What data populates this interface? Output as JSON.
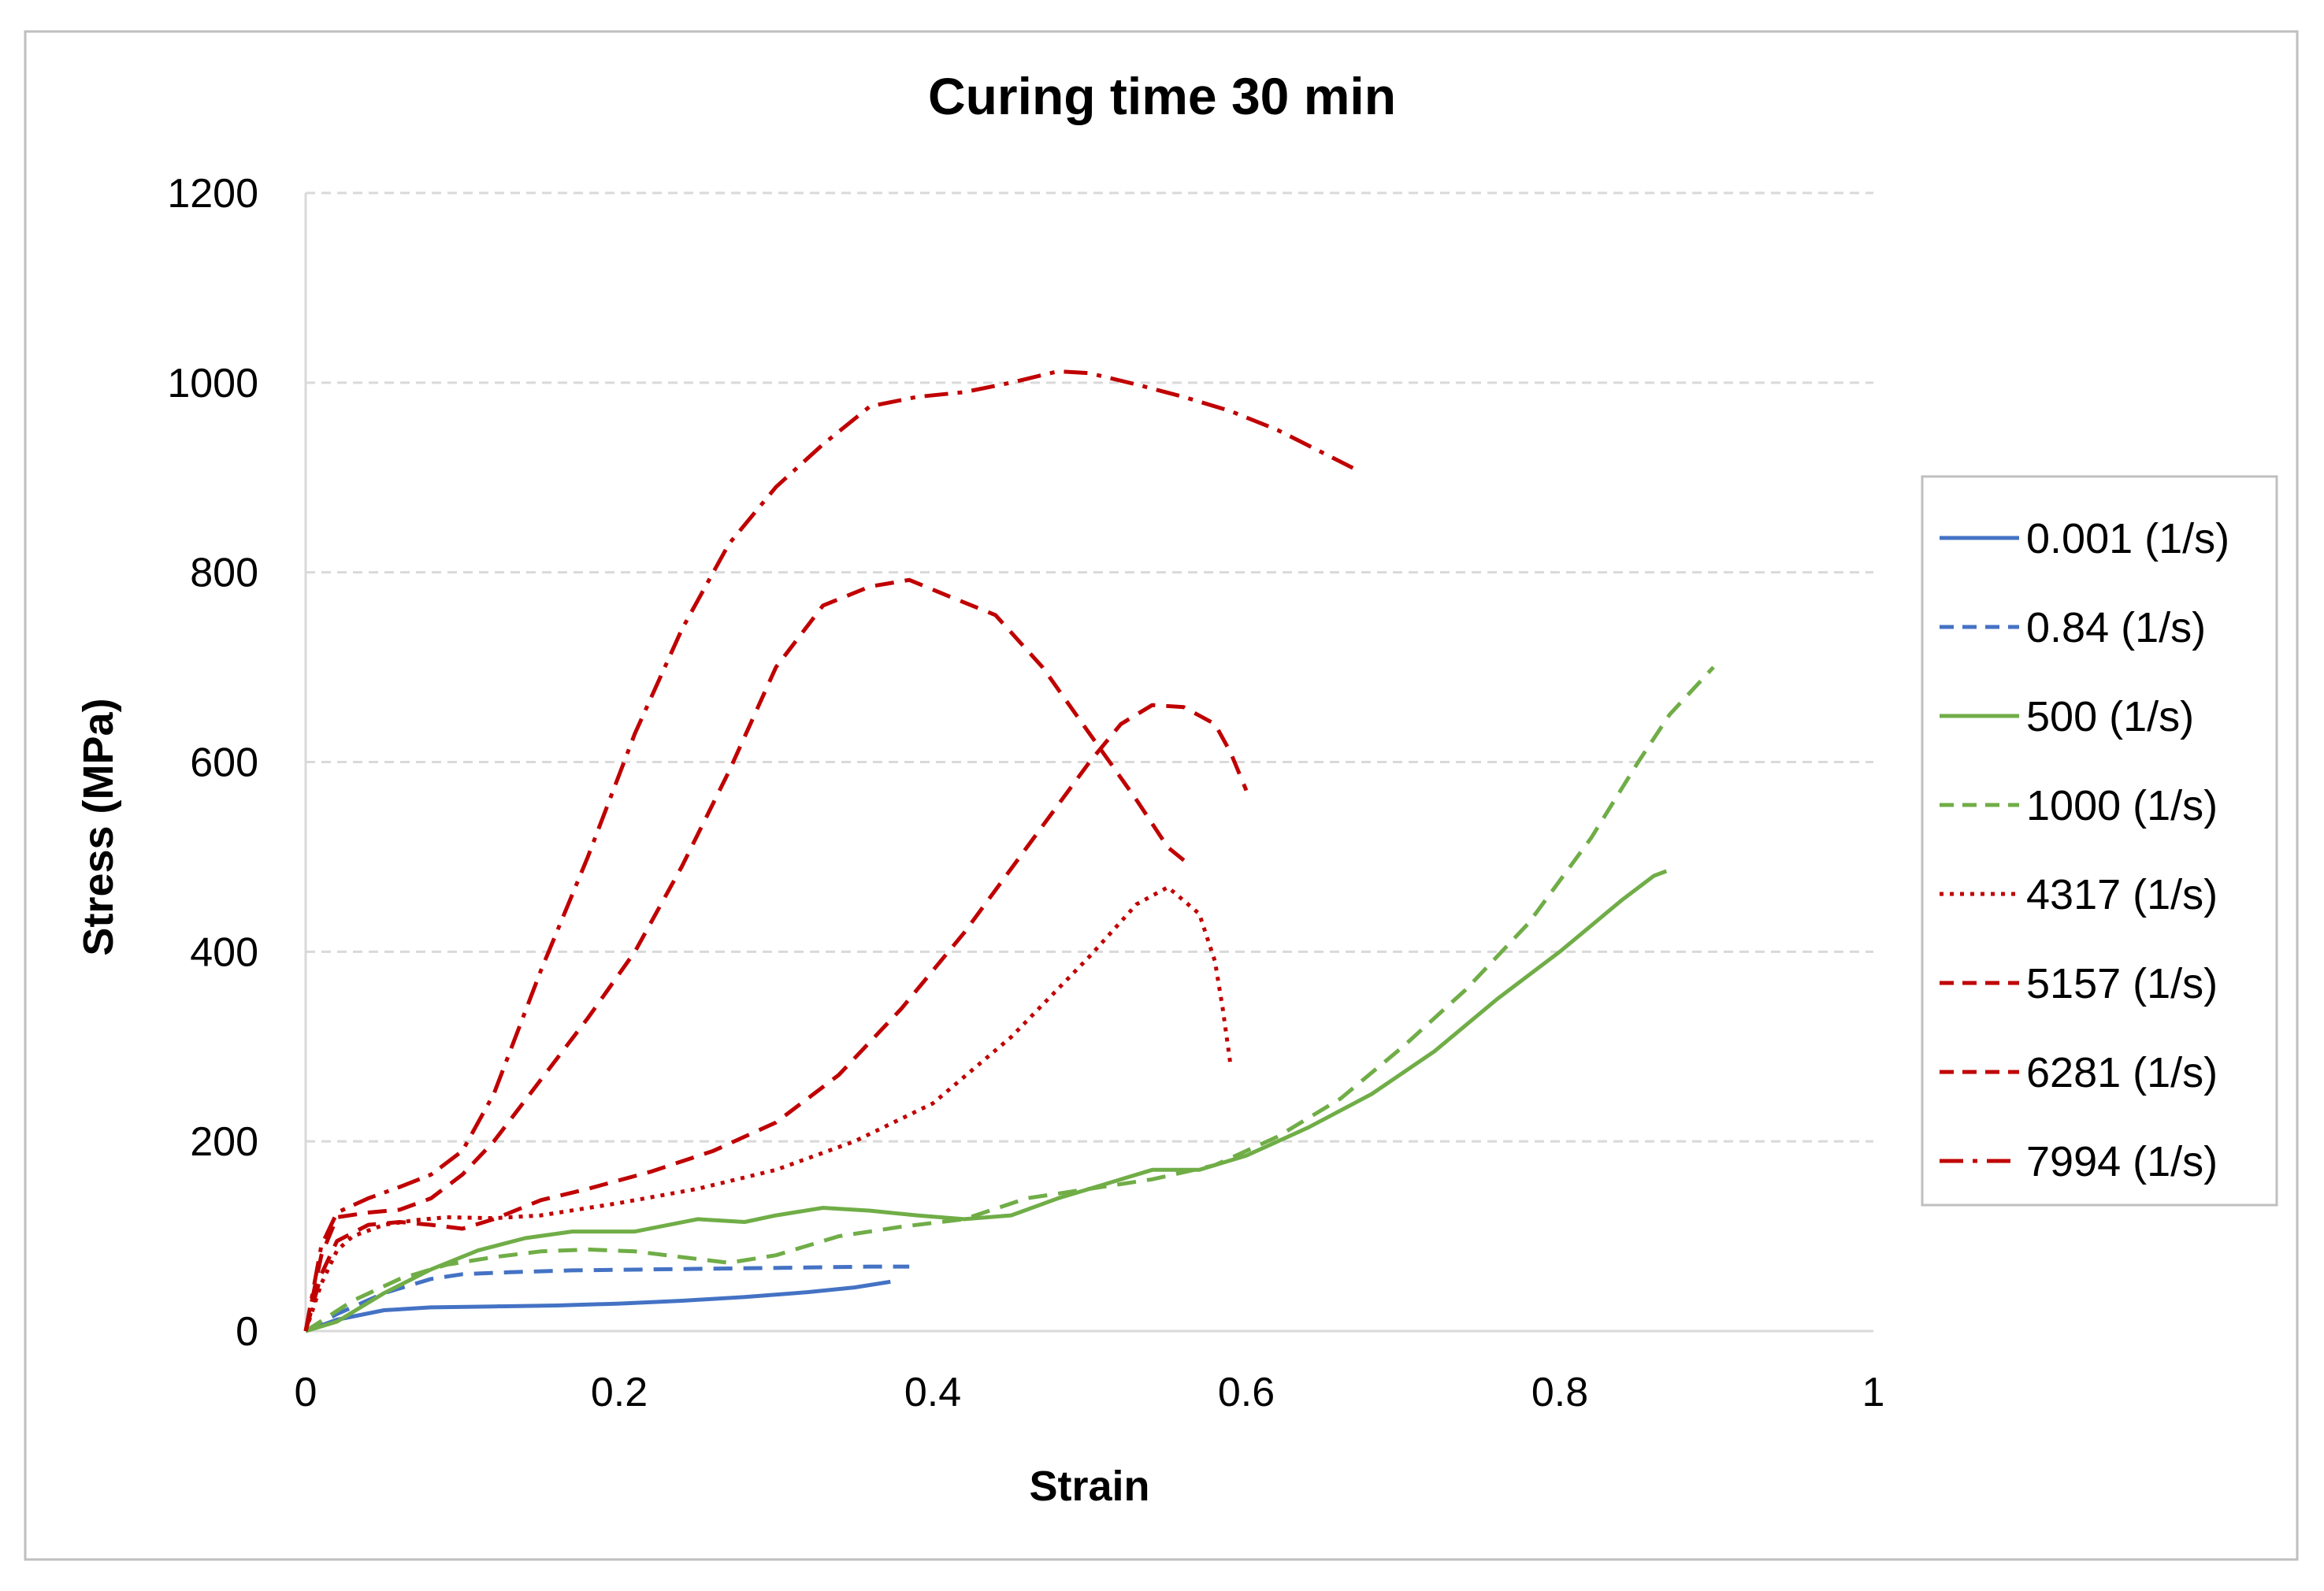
{
  "chart_data": {
    "type": "line",
    "title": "Curing time 30 min",
    "xlabel": "Strain",
    "ylabel": "Stress (MPa)",
    "xlim": [
      0,
      1
    ],
    "ylim": [
      0,
      1200
    ],
    "xticks": [
      0,
      0.2,
      0.4,
      0.6,
      0.8,
      1
    ],
    "xtick_labels": [
      "0",
      "0.2",
      "0.4",
      "0.6",
      "0.8",
      "1"
    ],
    "yticks": [
      0,
      200,
      400,
      600,
      800,
      1000,
      1200
    ],
    "ytick_labels": [
      "0",
      "200",
      "400",
      "600",
      "800",
      "1000",
      "1200"
    ],
    "grid": "horizontal dashed",
    "legend_position": "right",
    "series": [
      {
        "name": "0.001 (1/s)",
        "color": "#4472C4",
        "dash": "solid",
        "x": [
          0,
          0.02,
          0.05,
          0.08,
          0.12,
          0.16,
          0.2,
          0.24,
          0.28,
          0.32,
          0.35,
          0.373
        ],
        "y": [
          0,
          12,
          22,
          25,
          26,
          27,
          29,
          32,
          36,
          41,
          46,
          52
        ]
      },
      {
        "name": "0.84 (1/s)",
        "color": "#4472C4",
        "dash": "dashed",
        "x": [
          0,
          0.02,
          0.05,
          0.08,
          0.1,
          0.13,
          0.17,
          0.22,
          0.27,
          0.32,
          0.36,
          0.385
        ],
        "y": [
          0,
          18,
          40,
          55,
          60,
          62,
          64,
          65,
          66,
          67,
          68,
          68
        ]
      },
      {
        "name": "500 (1/s)",
        "color": "#70AD47",
        "dash": "solid",
        "x": [
          0,
          0.02,
          0.05,
          0.08,
          0.11,
          0.14,
          0.17,
          0.21,
          0.25,
          0.28,
          0.3,
          0.33,
          0.36,
          0.39,
          0.42,
          0.45,
          0.48,
          0.51,
          0.54,
          0.57,
          0.6,
          0.64,
          0.68,
          0.72,
          0.76,
          0.8,
          0.84,
          0.86,
          0.868
        ],
        "y": [
          0,
          10,
          40,
          65,
          85,
          98,
          105,
          105,
          118,
          115,
          122,
          130,
          127,
          122,
          118,
          122,
          140,
          155,
          170,
          170,
          185,
          215,
          250,
          295,
          350,
          400,
          455,
          480,
          485
        ]
      },
      {
        "name": "1000 (1/s)",
        "color": "#70AD47",
        "dash": "dashed",
        "x": [
          0,
          0.03,
          0.06,
          0.09,
          0.12,
          0.15,
          0.18,
          0.21,
          0.24,
          0.27,
          0.3,
          0.34,
          0.38,
          0.42,
          0.46,
          0.5,
          0.54,
          0.58,
          0.62,
          0.66,
          0.7,
          0.74,
          0.78,
          0.82,
          0.85,
          0.87,
          0.898
        ],
        "y": [
          0,
          32,
          55,
          70,
          78,
          84,
          86,
          84,
          78,
          72,
          80,
          100,
          110,
          118,
          140,
          150,
          160,
          175,
          205,
          245,
          300,
          360,
          430,
          520,
          600,
          650,
          700
        ]
      },
      {
        "name": "4317 (1/s)",
        "color": "#C00000",
        "dash": "dotted",
        "x": [
          0,
          0.01,
          0.02,
          0.03,
          0.05,
          0.07,
          0.09,
          0.12,
          0.15,
          0.2,
          0.25,
          0.3,
          0.35,
          0.4,
          0.45,
          0.5,
          0.53,
          0.55,
          0.57,
          0.58,
          0.585,
          0.59
        ],
        "y": [
          0,
          50,
          85,
          100,
          112,
          117,
          120,
          119,
          122,
          135,
          150,
          170,
          200,
          240,
          310,
          395,
          450,
          468,
          440,
          390,
          340,
          280
        ]
      },
      {
        "name": "5157 (1/s)",
        "color": "#C00000",
        "dash": "dashed",
        "x": [
          0,
          0.01,
          0.02,
          0.04,
          0.06,
          0.08,
          0.1,
          0.12,
          0.15,
          0.18,
          0.22,
          0.26,
          0.3,
          0.34,
          0.38,
          0.42,
          0.46,
          0.5,
          0.52,
          0.54,
          0.56,
          0.58,
          0.59,
          0.6
        ],
        "y": [
          0,
          60,
          95,
          112,
          115,
          112,
          108,
          118,
          138,
          150,
          168,
          190,
          220,
          270,
          340,
          420,
          510,
          600,
          640,
          660,
          658,
          640,
          610,
          570
        ]
      },
      {
        "name": "6281 (1/s)",
        "color": "#C00000",
        "dash": "dashed",
        "x": [
          0,
          0.01,
          0.02,
          0.04,
          0.06,
          0.08,
          0.1,
          0.12,
          0.15,
          0.18,
          0.21,
          0.24,
          0.27,
          0.3,
          0.33,
          0.36,
          0.385,
          0.41,
          0.44,
          0.47,
          0.5,
          0.53,
          0.55,
          0.565
        ],
        "y": [
          0,
          80,
          120,
          125,
          128,
          140,
          165,
          200,
          265,
          330,
          400,
          490,
          590,
          700,
          765,
          785,
          792,
          775,
          755,
          700,
          630,
          560,
          510,
          490
        ]
      },
      {
        "name": "7994 (1/s)",
        "color": "#C00000",
        "dash": "dashdot",
        "x": [
          0,
          0.01,
          0.02,
          0.04,
          0.06,
          0.08,
          0.1,
          0.12,
          0.15,
          0.18,
          0.21,
          0.24,
          0.27,
          0.3,
          0.33,
          0.36,
          0.39,
          0.42,
          0.45,
          0.48,
          0.5,
          0.53,
          0.56,
          0.59,
          0.62,
          0.65,
          0.668
        ],
        "y": [
          0,
          90,
          125,
          140,
          152,
          165,
          190,
          250,
          380,
          500,
          630,
          740,
          830,
          890,
          935,
          975,
          985,
          990,
          1000,
          1012,
          1010,
          998,
          985,
          970,
          950,
          925,
          910
        ]
      }
    ]
  }
}
